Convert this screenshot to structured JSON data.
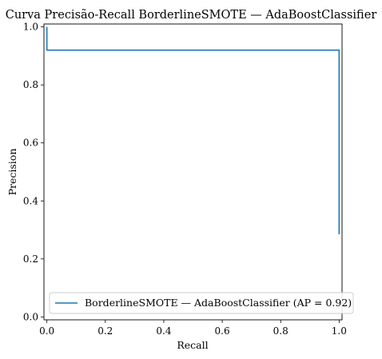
{
  "chart_data": {
    "type": "line",
    "title": "Curva Precisão-Recall BorderlineSMOTE — AdaBoostClassifier",
    "xlabel": "Recall",
    "ylabel": "Precision",
    "xlim": [
      -0.01,
      1.01
    ],
    "ylim": [
      -0.01,
      1.01
    ],
    "xticks": [
      "0.0",
      "0.2",
      "0.4",
      "0.6",
      "0.8",
      "1.0"
    ],
    "yticks": [
      "0.0",
      "0.2",
      "0.4",
      "0.6",
      "0.8",
      "1.0"
    ],
    "grid": false,
    "legend_position": "lower right",
    "series": [
      {
        "name": "BorderlineSMOTE — AdaBoostClassifier (AP = 0.92)",
        "color": "#1f77b4",
        "step": "post",
        "x": [
          0.0,
          0.0,
          0.0,
          1.0,
          1.0
        ],
        "y": [
          1.0,
          1.0,
          0.92,
          0.92,
          0.285
        ]
      }
    ]
  }
}
